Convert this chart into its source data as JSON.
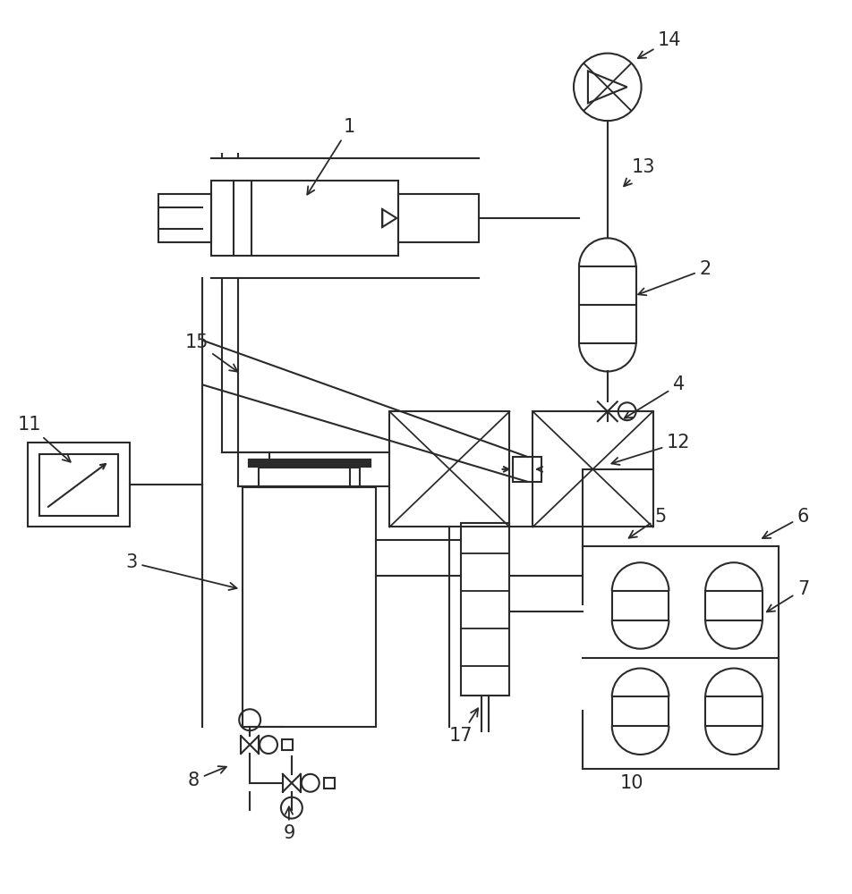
{
  "bg_color": "#ffffff",
  "lc": "#2a2a2a",
  "lw": 1.5,
  "fig_w": 9.52,
  "fig_h": 10.0,
  "dpi": 100
}
